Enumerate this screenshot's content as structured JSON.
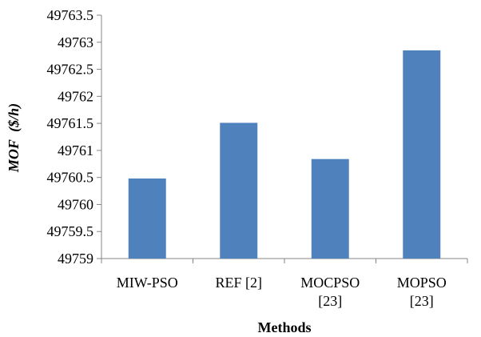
{
  "chart_data": {
    "type": "bar",
    "title": "",
    "categories": [
      [
        "MIW-PSO"
      ],
      [
        "REF [2]"
      ],
      [
        "MOCPSO",
        "[23]"
      ],
      [
        "MOPSO",
        "[23]"
      ]
    ],
    "values": [
      49760.48,
      49761.51,
      49760.84,
      49762.85
    ],
    "xlabel": "Methods",
    "ylabel_strong": "MOF",
    "ylabel_unit": "($/h)",
    "ylim": [
      49759,
      49763.5
    ],
    "yticks": [
      "49759",
      "49759.5",
      "49760",
      "49760.5",
      "49761",
      "49761.5",
      "49762",
      "49762.5",
      "49763",
      "49763.5"
    ],
    "grid": false,
    "legend": "none",
    "bar_color": "#4f81bd",
    "axis_color": "#868686"
  }
}
